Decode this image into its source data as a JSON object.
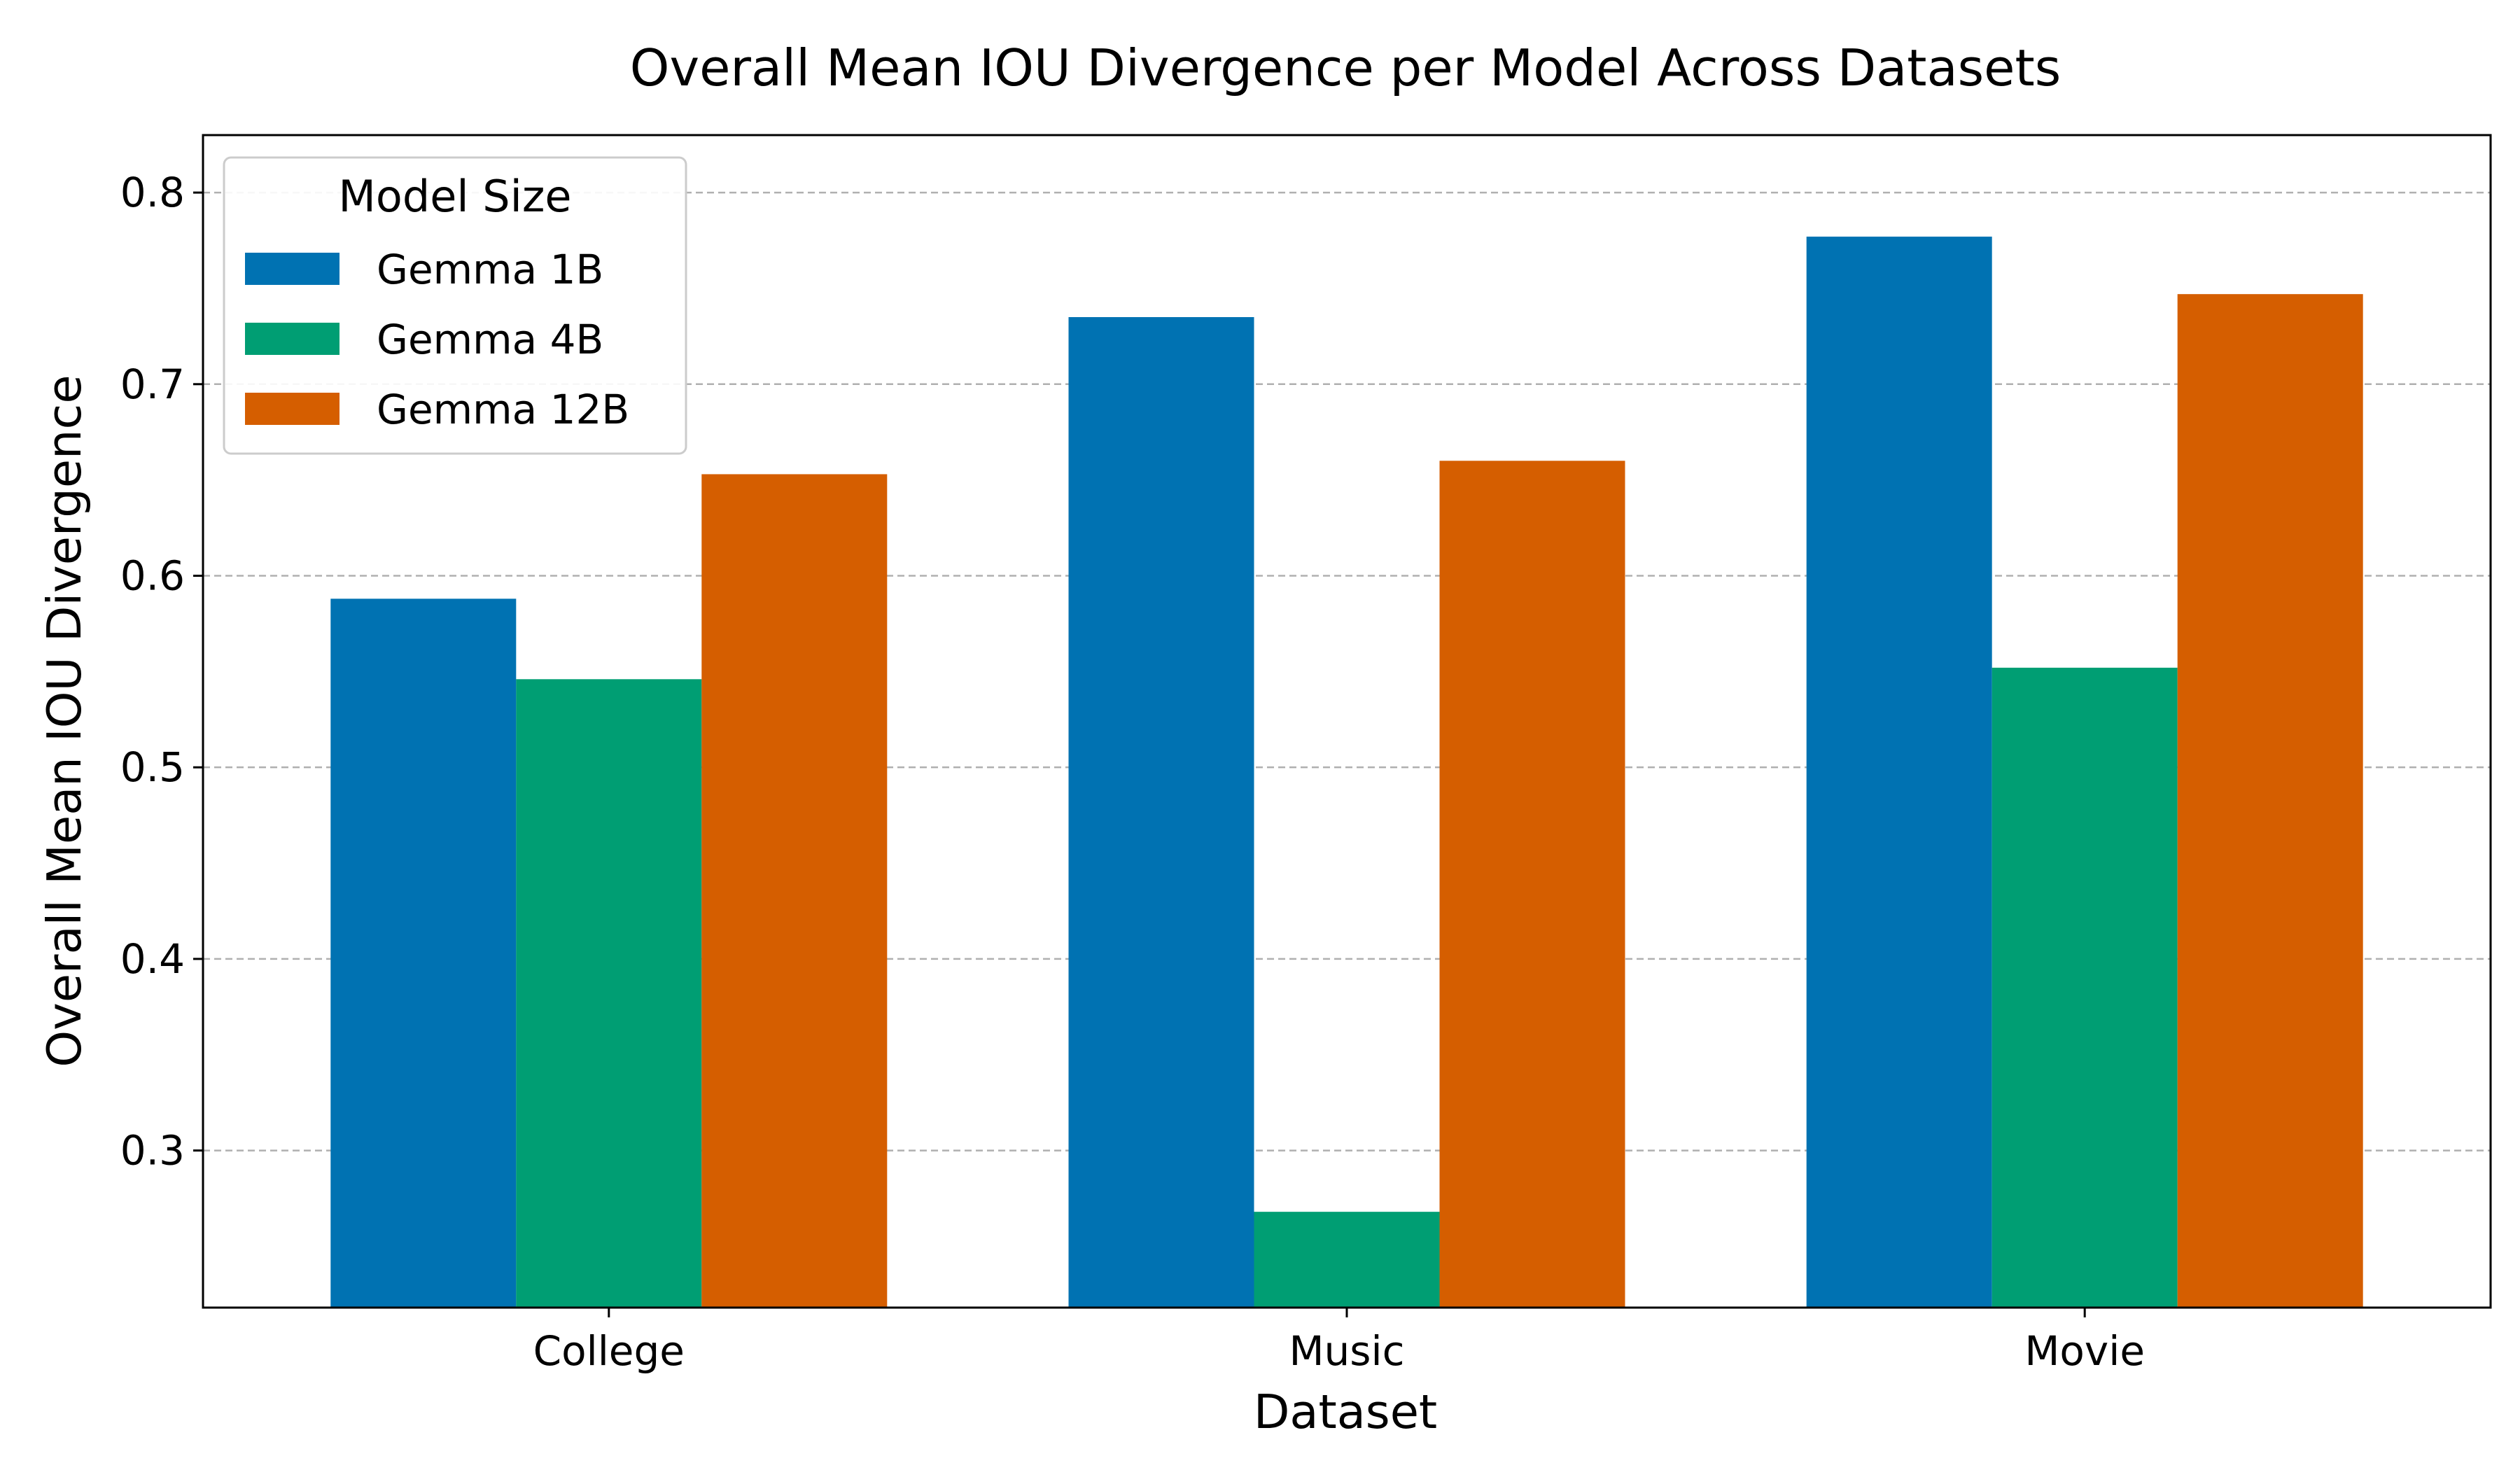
{
  "chart_data": {
    "type": "bar",
    "title": "Overall Mean IOU Divergence per Model Across Datasets",
    "xlabel": "Dataset",
    "ylabel": "Overall Mean IOU Divergence",
    "categories": [
      "College",
      "Music",
      "Movie"
    ],
    "series": [
      {
        "name": "Gemma 1B",
        "color": "#0072b2",
        "values": [
          0.588,
          0.735,
          0.777
        ]
      },
      {
        "name": "Gemma 4B",
        "color": "#009e73",
        "values": [
          0.546,
          0.268,
          0.552
        ]
      },
      {
        "name": "Gemma 12B",
        "color": "#d55e00",
        "values": [
          0.653,
          0.66,
          0.747
        ]
      }
    ],
    "ylim": [
      0.218,
      0.83
    ],
    "yticks": [
      0.3,
      0.4,
      0.5,
      0.6,
      0.7,
      0.8
    ],
    "ytick_labels": [
      "0.3",
      "0.4",
      "0.5",
      "0.6",
      "0.7",
      "0.8"
    ],
    "grid": "y-dashed",
    "legend": {
      "title": "Model Size",
      "position": "top-left"
    }
  }
}
